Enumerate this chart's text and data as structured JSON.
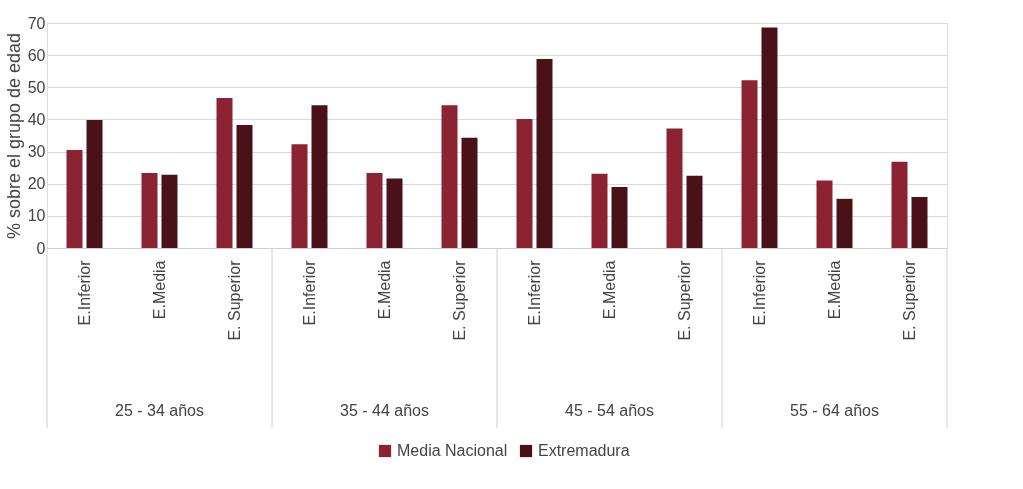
{
  "chart_data": {
    "type": "bar",
    "ylabel": "% sobre el grupo de edad",
    "categories": [
      "E.Inferior",
      "E.Media",
      "E. Superior",
      "E.Inferior",
      "E.Media",
      "E. Superior",
      "E.Inferior",
      "E.Media",
      "E. Superior",
      "E.Inferior",
      "E.Media",
      "E. Superior"
    ],
    "annotations": [
      "25 - 34 años",
      "35 - 44 años",
      "45 - 54 años",
      "55 - 64 años"
    ],
    "series": [
      {
        "name": "Media Nacional",
        "color": "#8b2332",
        "values": [
          30.5,
          23.3,
          46.7,
          32.3,
          23.3,
          44.4,
          40.1,
          23.1,
          37.2,
          52.2,
          21.0,
          26.8
        ]
      },
      {
        "name": "Extremadura",
        "color": "#4a1218",
        "values": [
          39.8,
          22.8,
          38.3,
          44.4,
          21.6,
          34.3,
          58.8,
          19.0,
          22.5,
          68.6,
          15.3,
          15.9
        ]
      }
    ],
    "ylim": [
      0,
      70
    ],
    "yticks": [
      0,
      10,
      20,
      30,
      40,
      50,
      60,
      70
    ],
    "grid": "y",
    "legend": "bottom"
  }
}
